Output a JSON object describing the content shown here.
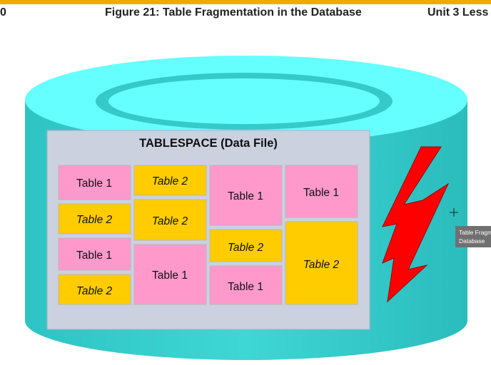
{
  "header": {
    "page_number": "0",
    "figure_title": "Figure 21: Table Fragmentation in the Database",
    "unit_label": "Unit 3 Less"
  },
  "diagram": {
    "tablespace_title": "TABLESPACE (Data File)",
    "blocks": [
      {
        "label": "Table 1",
        "italic": false,
        "color": "#ff99cc"
      },
      {
        "label": "Table 2",
        "italic": true,
        "color": "#ffcc00"
      },
      {
        "label": "Table 1",
        "italic": false,
        "color": "#ff99cc"
      },
      {
        "label": "Table 2",
        "italic": true,
        "color": "#ffcc00"
      },
      {
        "label": "Table 2",
        "italic": true,
        "color": "#ffcc00"
      },
      {
        "label": "Table 2",
        "italic": true,
        "color": "#ffcc00"
      },
      {
        "label": "Table 1",
        "italic": false,
        "color": "#ff99cc"
      },
      {
        "label": "Table 1",
        "italic": false,
        "color": "#ff99cc"
      },
      {
        "label": "Table 1",
        "italic": false,
        "color": "#ff99cc"
      },
      {
        "label": "Table 2",
        "italic": true,
        "color": "#ffcc00"
      },
      {
        "label": "Table 1",
        "italic": false,
        "color": "#ff99cc"
      },
      {
        "label": "Table 1",
        "italic": false,
        "color": "#ff99cc"
      },
      {
        "label": "Table 2",
        "italic": true,
        "color": "#ffcc00"
      }
    ]
  },
  "tooltip": {
    "line1": "Table Fragmentation in the",
    "line2": "Database"
  },
  "colors": {
    "accent": "#f0ab00",
    "cylinder_body": "#33cccc",
    "cylinder_top": "#66ffff",
    "tablespace_bg": "#ccd1e0",
    "lightning": "#ff0000"
  }
}
